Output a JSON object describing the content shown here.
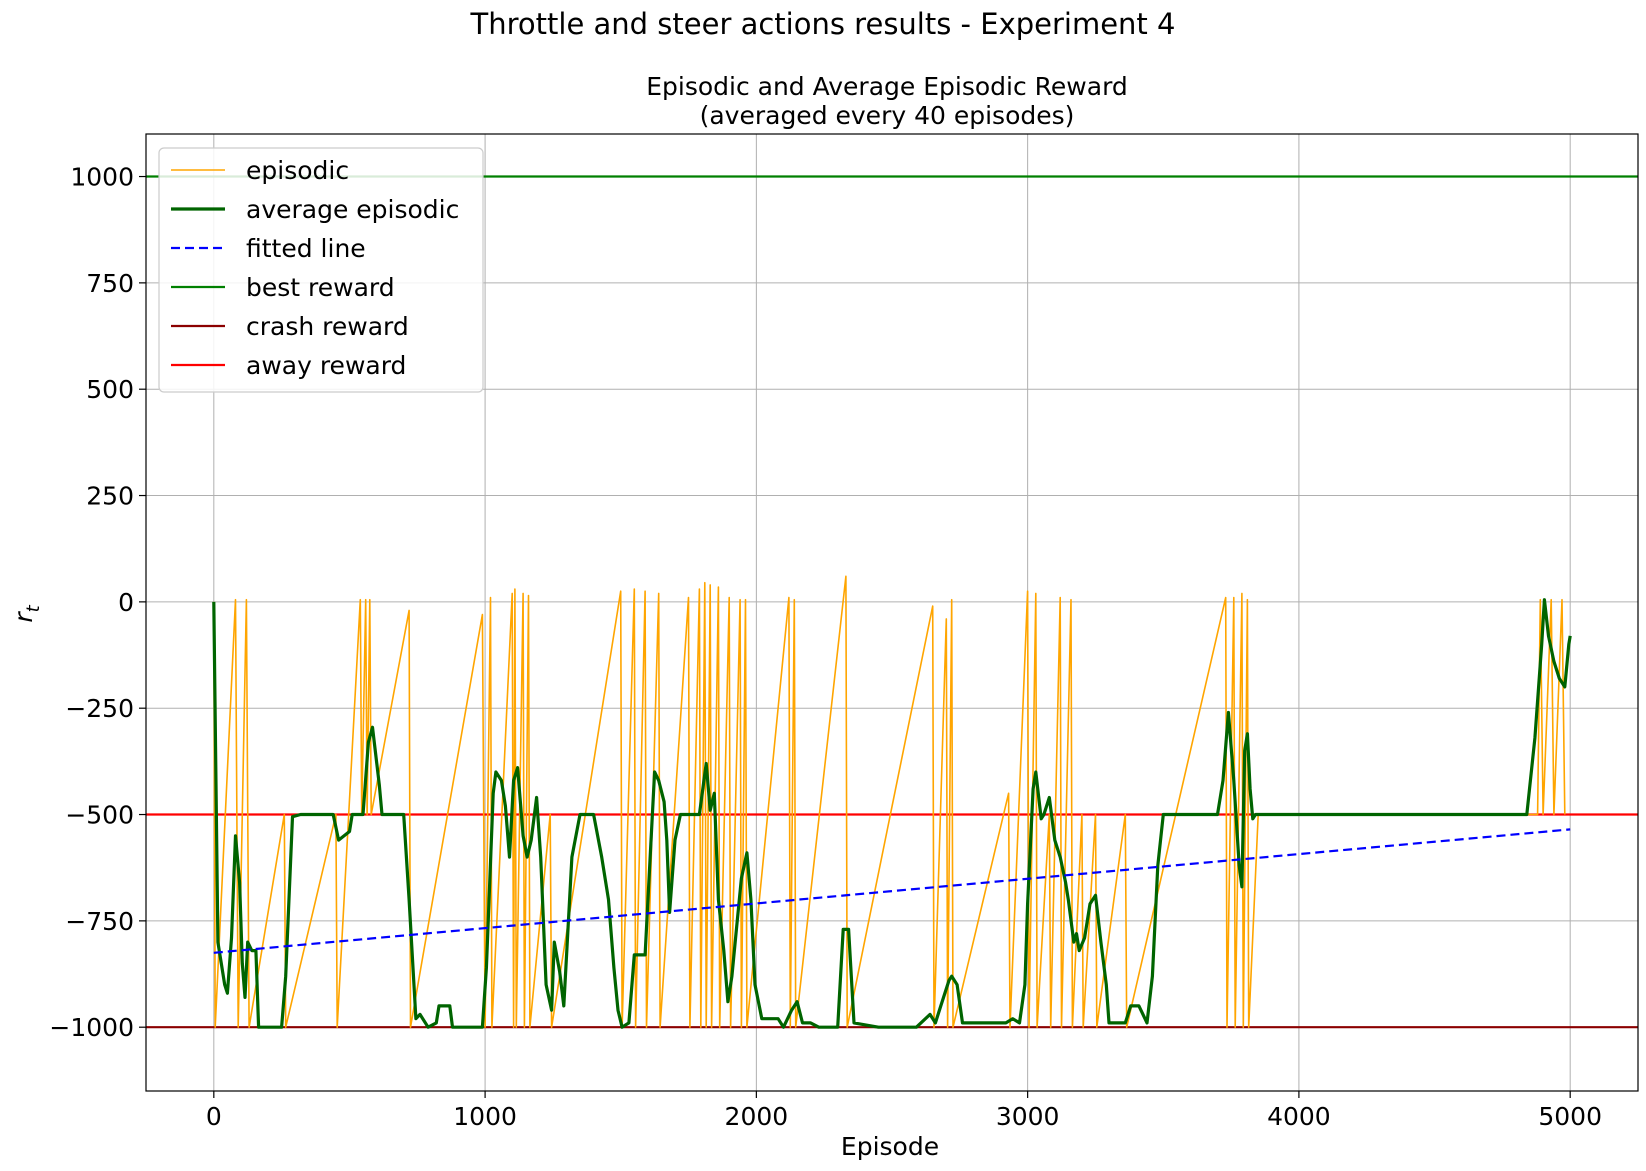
{
  "suptitle": "Throttle and steer actions results - Experiment 4",
  "title_line1": "Episodic and Average Episodic Reward",
  "title_line2": "(averaged every 40 episodes)",
  "xlabel": "Episode",
  "ylabel": "r",
  "ylabel_sub": "t",
  "chart_data": {
    "type": "line",
    "title": "Episodic and Average Episodic Reward (averaged every 40 episodes)",
    "xlabel": "Episode",
    "ylabel": "r_t",
    "xlim": [
      -250,
      5250
    ],
    "ylim": [
      -1150,
      1100
    ],
    "xticks": [
      0,
      1000,
      2000,
      3000,
      4000,
      5000
    ],
    "xtick_labels": [
      "0",
      "1000",
      "2000",
      "3000",
      "4000",
      "5000"
    ],
    "yticks": [
      1000,
      750,
      500,
      250,
      0,
      -250,
      -500,
      -750,
      -1000
    ],
    "ytick_labels": [
      "1000",
      "750",
      "500",
      "250",
      "0",
      "−250",
      "−500",
      "−750",
      "−1000"
    ],
    "grid": true,
    "legend_position": "upper-left",
    "series": [
      {
        "name": "episodic",
        "style": "solid-thin",
        "color": "#FFA500",
        "points": [
          [
            0,
            0
          ],
          [
            5,
            -1000
          ],
          [
            80,
            5
          ],
          [
            90,
            -1000
          ],
          [
            120,
            5
          ],
          [
            130,
            -1000
          ],
          [
            260,
            -500
          ],
          [
            265,
            -1000
          ],
          [
            450,
            -500
          ],
          [
            455,
            -1000
          ],
          [
            540,
            5
          ],
          [
            545,
            -500
          ],
          [
            560,
            5
          ],
          [
            565,
            -500
          ],
          [
            575,
            5
          ],
          [
            580,
            -500
          ],
          [
            720,
            -20
          ],
          [
            725,
            -1000
          ],
          [
            990,
            -30
          ],
          [
            1000,
            -1000
          ],
          [
            1020,
            10
          ],
          [
            1025,
            -1000
          ],
          [
            1100,
            20
          ],
          [
            1105,
            -1000
          ],
          [
            1110,
            30
          ],
          [
            1115,
            -1000
          ],
          [
            1140,
            20
          ],
          [
            1145,
            -1000
          ],
          [
            1160,
            15
          ],
          [
            1165,
            -1000
          ],
          [
            1240,
            -500
          ],
          [
            1245,
            -1000
          ],
          [
            1500,
            25
          ],
          [
            1505,
            -1000
          ],
          [
            1550,
            30
          ],
          [
            1555,
            -1000
          ],
          [
            1590,
            25
          ],
          [
            1595,
            -1000
          ],
          [
            1640,
            20
          ],
          [
            1645,
            -1000
          ],
          [
            1750,
            10
          ],
          [
            1755,
            -1000
          ],
          [
            1790,
            30
          ],
          [
            1795,
            -1000
          ],
          [
            1810,
            45
          ],
          [
            1815,
            -1000
          ],
          [
            1830,
            40
          ],
          [
            1835,
            -1000
          ],
          [
            1860,
            35
          ],
          [
            1865,
            -1000
          ],
          [
            1900,
            10
          ],
          [
            1905,
            -1000
          ],
          [
            1940,
            5
          ],
          [
            1945,
            -1000
          ],
          [
            1960,
            5
          ],
          [
            1965,
            -1000
          ],
          [
            2120,
            10
          ],
          [
            2125,
            -1000
          ],
          [
            2140,
            5
          ],
          [
            2145,
            -1000
          ],
          [
            2330,
            60
          ],
          [
            2335,
            -1000
          ],
          [
            2650,
            -10
          ],
          [
            2655,
            -1000
          ],
          [
            2700,
            -40
          ],
          [
            2705,
            -1000
          ],
          [
            2720,
            5
          ],
          [
            2725,
            -1000
          ],
          [
            2930,
            -450
          ],
          [
            2935,
            -1000
          ],
          [
            3000,
            25
          ],
          [
            3005,
            -1000
          ],
          [
            3030,
            20
          ],
          [
            3035,
            -1000
          ],
          [
            3080,
            -500
          ],
          [
            3085,
            -1000
          ],
          [
            3120,
            10
          ],
          [
            3125,
            -1000
          ],
          [
            3160,
            5
          ],
          [
            3165,
            -1000
          ],
          [
            3200,
            -500
          ],
          [
            3205,
            -1000
          ],
          [
            3250,
            -500
          ],
          [
            3255,
            -1000
          ],
          [
            3360,
            -500
          ],
          [
            3365,
            -1000
          ],
          [
            3730,
            10
          ],
          [
            3735,
            -1000
          ],
          [
            3760,
            10
          ],
          [
            3765,
            -1000
          ],
          [
            3790,
            20
          ],
          [
            3795,
            -1000
          ],
          [
            3810,
            5
          ],
          [
            3815,
            -1000
          ],
          [
            3850,
            -500
          ],
          [
            4880,
            -500
          ],
          [
            4890,
            5
          ],
          [
            4900,
            -500
          ],
          [
            4930,
            5
          ],
          [
            4940,
            -500
          ],
          [
            4970,
            5
          ],
          [
            4980,
            -500
          ]
        ]
      },
      {
        "name": "average episodic",
        "style": "solid-thick",
        "color": "#006400",
        "points": [
          [
            0,
            0
          ],
          [
            15,
            -800
          ],
          [
            40,
            -900
          ],
          [
            50,
            -920
          ],
          [
            65,
            -790
          ],
          [
            80,
            -550
          ],
          [
            95,
            -660
          ],
          [
            105,
            -850
          ],
          [
            115,
            -930
          ],
          [
            125,
            -800
          ],
          [
            140,
            -820
          ],
          [
            155,
            -820
          ],
          [
            165,
            -1000
          ],
          [
            250,
            -1000
          ],
          [
            265,
            -880
          ],
          [
            290,
            -505
          ],
          [
            320,
            -500
          ],
          [
            440,
            -500
          ],
          [
            460,
            -560
          ],
          [
            500,
            -540
          ],
          [
            510,
            -500
          ],
          [
            550,
            -500
          ],
          [
            570,
            -330
          ],
          [
            585,
            -295
          ],
          [
            610,
            -430
          ],
          [
            620,
            -500
          ],
          [
            700,
            -500
          ],
          [
            720,
            -700
          ],
          [
            745,
            -980
          ],
          [
            760,
            -970
          ],
          [
            790,
            -1000
          ],
          [
            820,
            -990
          ],
          [
            830,
            -950
          ],
          [
            870,
            -950
          ],
          [
            880,
            -1000
          ],
          [
            990,
            -1000
          ],
          [
            1005,
            -860
          ],
          [
            1030,
            -450
          ],
          [
            1040,
            -400
          ],
          [
            1060,
            -420
          ],
          [
            1075,
            -480
          ],
          [
            1090,
            -600
          ],
          [
            1105,
            -420
          ],
          [
            1120,
            -390
          ],
          [
            1140,
            -550
          ],
          [
            1155,
            -600
          ],
          [
            1170,
            -560
          ],
          [
            1190,
            -460
          ],
          [
            1205,
            -600
          ],
          [
            1225,
            -900
          ],
          [
            1245,
            -960
          ],
          [
            1255,
            -800
          ],
          [
            1275,
            -870
          ],
          [
            1290,
            -950
          ],
          [
            1320,
            -600
          ],
          [
            1350,
            -500
          ],
          [
            1400,
            -500
          ],
          [
            1430,
            -600
          ],
          [
            1455,
            -700
          ],
          [
            1475,
            -860
          ],
          [
            1490,
            -960
          ],
          [
            1505,
            -1000
          ],
          [
            1530,
            -990
          ],
          [
            1550,
            -830
          ],
          [
            1590,
            -830
          ],
          [
            1610,
            -580
          ],
          [
            1625,
            -400
          ],
          [
            1640,
            -420
          ],
          [
            1660,
            -470
          ],
          [
            1670,
            -560
          ],
          [
            1680,
            -730
          ],
          [
            1700,
            -560
          ],
          [
            1720,
            -500
          ],
          [
            1790,
            -500
          ],
          [
            1815,
            -380
          ],
          [
            1830,
            -490
          ],
          [
            1845,
            -450
          ],
          [
            1860,
            -700
          ],
          [
            1880,
            -820
          ],
          [
            1895,
            -940
          ],
          [
            1910,
            -880
          ],
          [
            1925,
            -780
          ],
          [
            1945,
            -650
          ],
          [
            1965,
            -590
          ],
          [
            1980,
            -700
          ],
          [
            1995,
            -900
          ],
          [
            2020,
            -980
          ],
          [
            2080,
            -980
          ],
          [
            2100,
            -1000
          ],
          [
            2130,
            -960
          ],
          [
            2150,
            -940
          ],
          [
            2170,
            -990
          ],
          [
            2200,
            -990
          ],
          [
            2230,
            -1000
          ],
          [
            2300,
            -1000
          ],
          [
            2320,
            -770
          ],
          [
            2340,
            -770
          ],
          [
            2360,
            -990
          ],
          [
            2450,
            -1000
          ],
          [
            2590,
            -1000
          ],
          [
            2640,
            -970
          ],
          [
            2660,
            -990
          ],
          [
            2680,
            -950
          ],
          [
            2710,
            -890
          ],
          [
            2720,
            -880
          ],
          [
            2740,
            -900
          ],
          [
            2760,
            -990
          ],
          [
            2920,
            -990
          ],
          [
            2945,
            -980
          ],
          [
            2970,
            -990
          ],
          [
            2990,
            -900
          ],
          [
            3000,
            -710
          ],
          [
            3020,
            -440
          ],
          [
            3030,
            -400
          ],
          [
            3050,
            -510
          ],
          [
            3060,
            -500
          ],
          [
            3080,
            -460
          ],
          [
            3100,
            -560
          ],
          [
            3120,
            -600
          ],
          [
            3140,
            -660
          ],
          [
            3150,
            -700
          ],
          [
            3170,
            -800
          ],
          [
            3180,
            -780
          ],
          [
            3190,
            -820
          ],
          [
            3210,
            -790
          ],
          [
            3230,
            -710
          ],
          [
            3250,
            -690
          ],
          [
            3270,
            -800
          ],
          [
            3290,
            -900
          ],
          [
            3300,
            -990
          ],
          [
            3360,
            -990
          ],
          [
            3380,
            -950
          ],
          [
            3410,
            -950
          ],
          [
            3440,
            -990
          ],
          [
            3460,
            -880
          ],
          [
            3480,
            -620
          ],
          [
            3500,
            -500
          ],
          [
            3700,
            -500
          ],
          [
            3720,
            -420
          ],
          [
            3740,
            -260
          ],
          [
            3760,
            -420
          ],
          [
            3780,
            -620
          ],
          [
            3790,
            -670
          ],
          [
            3800,
            -350
          ],
          [
            3810,
            -310
          ],
          [
            3820,
            -440
          ],
          [
            3830,
            -510
          ],
          [
            3840,
            -500
          ],
          [
            4840,
            -500
          ],
          [
            4870,
            -320
          ],
          [
            4895,
            -100
          ],
          [
            4905,
            5
          ],
          [
            4920,
            -80
          ],
          [
            4940,
            -140
          ],
          [
            4960,
            -180
          ],
          [
            4980,
            -200
          ],
          [
            4995,
            -100
          ],
          [
            5000,
            -80
          ]
        ]
      },
      {
        "name": "fitted line",
        "style": "dashed",
        "color": "#0000FF",
        "points": [
          [
            0,
            -825
          ],
          [
            5000,
            -535
          ]
        ]
      },
      {
        "name": "best reward",
        "style": "hline",
        "color": "#008000",
        "y": 1000
      },
      {
        "name": "crash reward",
        "style": "hline",
        "color": "#8B0000",
        "y": -1000
      },
      {
        "name": "away reward",
        "style": "hline",
        "color": "#FF0000",
        "y": -500
      }
    ]
  }
}
